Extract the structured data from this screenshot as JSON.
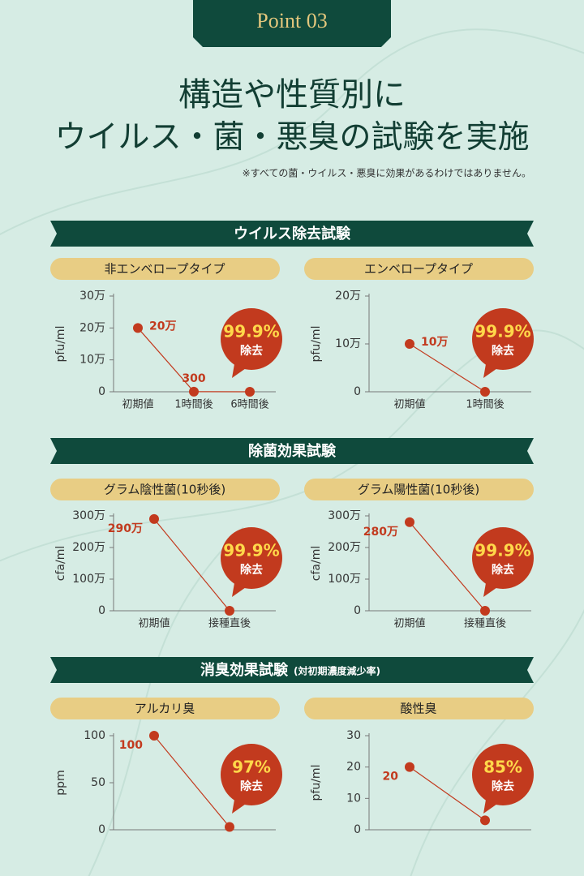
{
  "header": {
    "point": "Point 03",
    "title_lines": [
      "構造や性質別に",
      "ウイルス・菌・悪臭の試験を実施"
    ],
    "note": "※すべての菌・ウイルス・悪臭に効果があるわけではありません。"
  },
  "sections": [
    {
      "title": "ウイルス除去試験"
    },
    {
      "title": "除菌効果試験"
    },
    {
      "title": "消臭効果試験",
      "note": "(対初期濃度減少率)"
    }
  ],
  "chart_data": [
    {
      "type": "line",
      "title": "非エンベロープタイプ",
      "y_label": "pfu/ml",
      "categories": [
        "初期値",
        "1時間後",
        "6時間後"
      ],
      "values": [
        200000,
        300,
        0
      ],
      "value_labels": [
        "20万",
        "300",
        null
      ],
      "color": "#c23a1e",
      "ylim": [
        0,
        300000
      ],
      "yticks": [
        0,
        {
          "value": 100000,
          "label": "10万"
        },
        {
          "value": 200000,
          "label": "20万"
        },
        {
          "value": 300000,
          "label": "30万"
        }
      ],
      "annotations": [
        "99.9%",
        "除去"
      ]
    },
    {
      "type": "line",
      "title": "エンベロープタイプ",
      "y_label": "pfu/ml",
      "categories": [
        "初期値",
        "1時間後"
      ],
      "values": [
        100000,
        0
      ],
      "value_labels": [
        "10万",
        null
      ],
      "color": "#c23a1e",
      "ylim": [
        0,
        200000
      ],
      "yticks": [
        0,
        {
          "value": 100000,
          "label": "10万"
        },
        {
          "value": 200000,
          "label": "20万"
        }
      ],
      "annotations": [
        "99.9%",
        "除去"
      ]
    },
    {
      "type": "line",
      "title": "グラム陰性菌(10秒後)",
      "y_label": "cfa/ml",
      "categories": [
        "初期値",
        "接種直後"
      ],
      "values": [
        2900000,
        0
      ],
      "value_labels": [
        "290万",
        null
      ],
      "color": "#c23a1e",
      "ylim": [
        0,
        3000000
      ],
      "yticks": [
        0,
        {
          "value": 1000000,
          "label": "100万"
        },
        {
          "value": 2000000,
          "label": "200万"
        },
        {
          "value": 3000000,
          "label": "300万"
        }
      ],
      "annotations": [
        "99.9%",
        "除去"
      ]
    },
    {
      "type": "line",
      "title": "グラム陽性菌(10秒後)",
      "y_label": "cfa/ml",
      "categories": [
        "初期値",
        "接種直後"
      ],
      "values": [
        2800000,
        0
      ],
      "value_labels": [
        "280万",
        null
      ],
      "color": "#c23a1e",
      "ylim": [
        0,
        3000000
      ],
      "yticks": [
        0,
        {
          "value": 1000000,
          "label": "100万"
        },
        {
          "value": 2000000,
          "label": "200万"
        },
        {
          "value": 3000000,
          "label": "300万"
        }
      ],
      "annotations": [
        "99.9%",
        "除去"
      ]
    },
    {
      "type": "line",
      "title": "アルカリ臭",
      "y_label": "ppm",
      "categories": [
        null,
        null
      ],
      "values": [
        100,
        3
      ],
      "value_labels": [
        "100",
        null
      ],
      "color": "#c23a1e",
      "ylim": [
        0,
        100
      ],
      "yticks": [
        0,
        50,
        100
      ],
      "annotations": [
        "97%",
        "除去"
      ]
    },
    {
      "type": "line",
      "title": "酸性臭",
      "y_label": "pfu/ml",
      "categories": [
        null,
        null
      ],
      "values": [
        20,
        3
      ],
      "value_labels": [
        "20",
        null
      ],
      "color": "#c23a1e",
      "ylim": [
        0,
        30
      ],
      "yticks": [
        0,
        10,
        20,
        30
      ],
      "annotations": [
        "85%",
        "除去"
      ]
    }
  ]
}
